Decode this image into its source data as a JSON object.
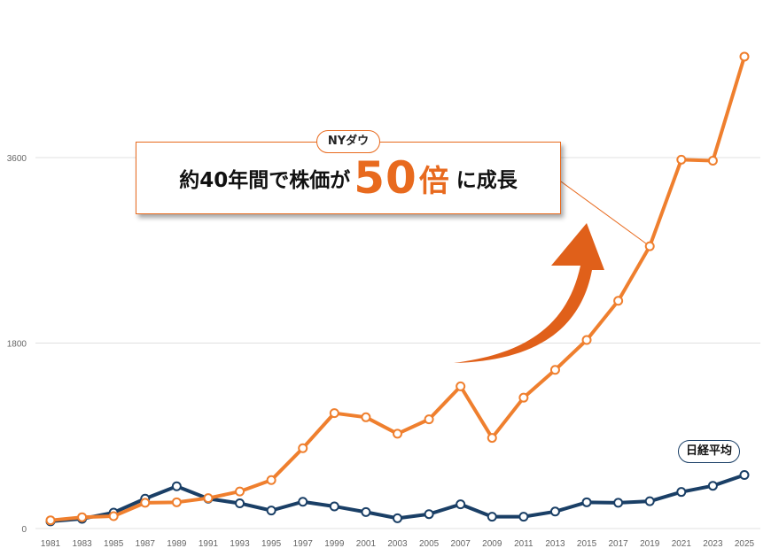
{
  "callout": {
    "tag": "NYダウ",
    "text_pre": "約40年間で株価が",
    "text_big": "50",
    "text_bai": "倍",
    "text_post": "に成長"
  },
  "nikkei_tag": "日経平均",
  "colors": {
    "dow": "#ef7f2e",
    "nikkei": "#1a3f66",
    "arrow": "#e0601a"
  },
  "chart_data": {
    "type": "line",
    "x": [
      1981,
      1983,
      1985,
      1987,
      1989,
      1991,
      1993,
      1995,
      1997,
      1999,
      2001,
      2003,
      2005,
      2007,
      2009,
      2011,
      2013,
      2015,
      2017,
      2019,
      2021,
      2023,
      2025
    ],
    "x_tick_labels": [
      "1981",
      "1983",
      "1985",
      "1987",
      "1989",
      "1991",
      "1993",
      "1995",
      "1997",
      "1999",
      "2001",
      "2003",
      "2005",
      "2007",
      "2009",
      "2011",
      "2013",
      "2015",
      "2017",
      "2019",
      "2021",
      "2023",
      "2025"
    ],
    "y_ticks": [
      0,
      1800,
      3600
    ],
    "ylim": [
      0,
      4700
    ],
    "grid": true,
    "series": [
      {
        "name": "NYダウ",
        "color": "#ef7f2e",
        "values": [
          80,
          110,
          120,
          250,
          255,
          295,
          360,
          470,
          780,
          1120,
          1080,
          920,
          1060,
          1380,
          880,
          1270,
          1540,
          1830,
          2210,
          2740,
          3580,
          3570,
          4580
        ]
      },
      {
        "name": "日経平均",
        "color": "#1a3f66",
        "values": [
          70,
          95,
          155,
          290,
          410,
          290,
          245,
          175,
          260,
          215,
          160,
          100,
          140,
          235,
          115,
          115,
          165,
          255,
          250,
          265,
          355,
          415,
          520
        ]
      }
    ]
  }
}
